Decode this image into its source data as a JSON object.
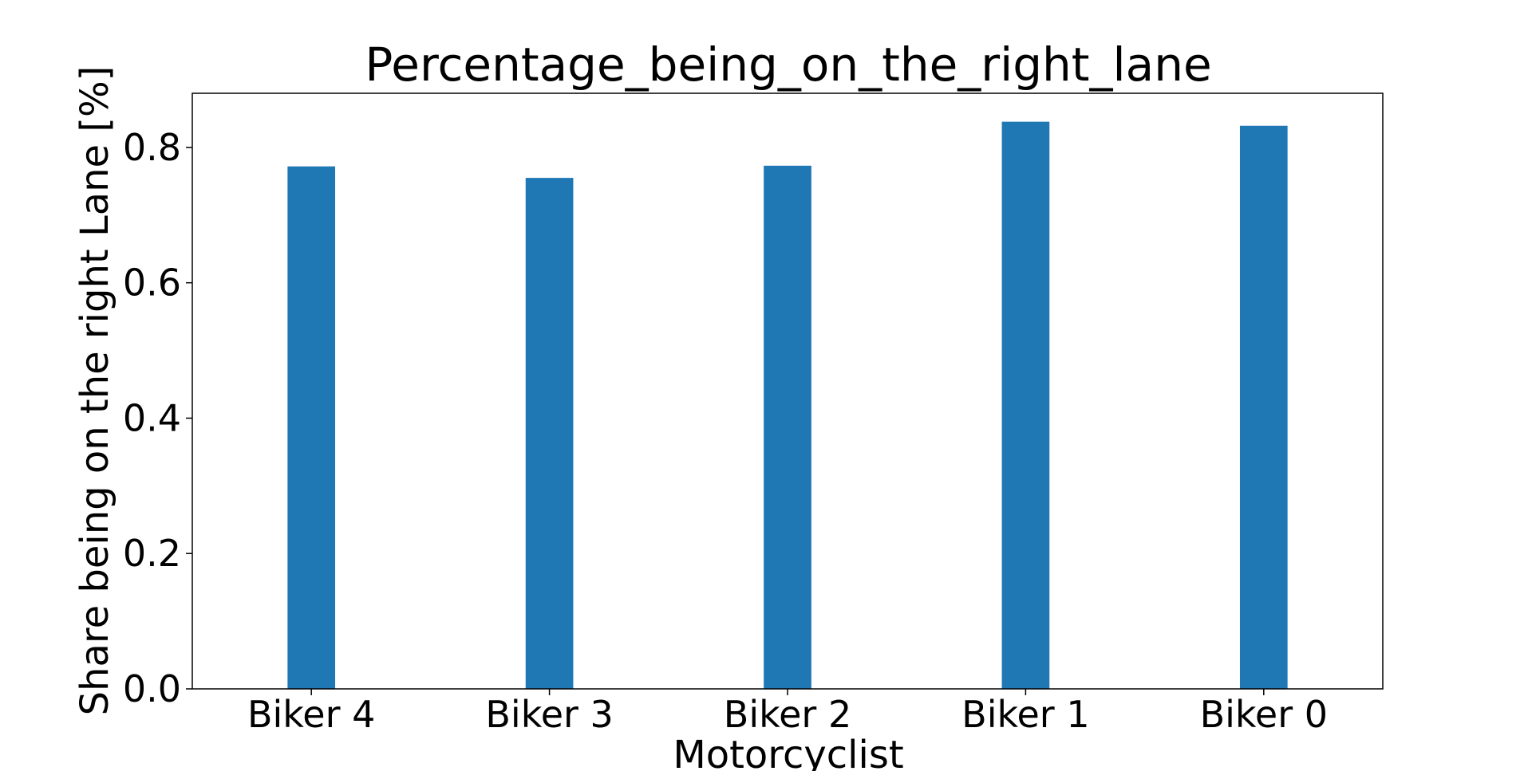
{
  "chart_data": {
    "type": "bar",
    "title": "Percentage_being_on_the_right_lane",
    "xlabel": "Motorcyclist",
    "ylabel": "Share being on the right Lane [%]",
    "categories": [
      "Biker 4",
      "Biker 3",
      "Biker 2",
      "Biker 1",
      "Biker 0"
    ],
    "values": [
      0.772,
      0.755,
      0.773,
      0.838,
      0.832
    ],
    "ylim": [
      0,
      0.88
    ],
    "yticks": [
      0.0,
      0.2,
      0.4,
      0.6,
      0.8
    ],
    "ytick_labels": [
      "0.0",
      "0.2",
      "0.4",
      "0.6",
      "0.8"
    ],
    "grid": false,
    "legend": "none",
    "colors": {
      "bar": "#1f77b4",
      "axis": "#000000",
      "background": "#ffffff"
    }
  }
}
